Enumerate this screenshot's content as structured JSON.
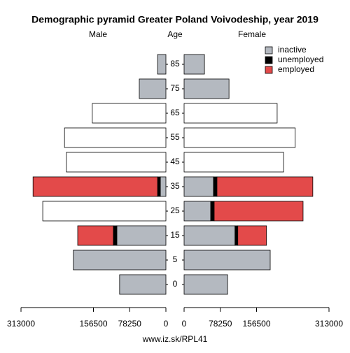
{
  "chart_data": {
    "type": "pyramid",
    "title": "Demographic pyramid Greater Poland Voivodeship, year 2019",
    "left_label": "Male",
    "center_label": "Age",
    "right_label": "Female",
    "source": "www.iz.sk/RPL41",
    "categories": [
      "0",
      "5",
      "15",
      "25",
      "35",
      "45",
      "55",
      "65",
      "75",
      "85"
    ],
    "series": [
      {
        "name": "inactive",
        "color": "#b4b9c0",
        "male": [
          100000,
          200000,
          106000,
          null,
          12000,
          null,
          null,
          null,
          57500,
          18000
        ],
        "female": [
          94000,
          186000,
          110000,
          57500,
          63500,
          null,
          null,
          null,
          97000,
          44000
        ]
      },
      {
        "name": "unemployed",
        "color": "#000000",
        "male": [
          null,
          null,
          7500,
          null,
          6000,
          null,
          null,
          null,
          null,
          null
        ],
        "female": [
          null,
          null,
          6000,
          7500,
          7500,
          null,
          null,
          null,
          null,
          null
        ]
      },
      {
        "name": "employed",
        "color": "#e34a4a",
        "male": [
          null,
          null,
          77000,
          null,
          269000,
          null,
          null,
          null,
          null,
          null
        ],
        "female": [
          null,
          null,
          62000,
          192000,
          207000,
          null,
          null,
          null,
          null,
          null
        ]
      }
    ],
    "totals": {
      "color": "#ffffff",
      "male": [
        null,
        null,
        null,
        266000,
        null,
        215000,
        219000,
        159000,
        null,
        null
      ],
      "female": [
        null,
        null,
        null,
        null,
        null,
        215000,
        240000,
        201000,
        null,
        null
      ]
    },
    "xlim": [
      0,
      313000
    ],
    "xticks": [
      313000,
      156500,
      78250,
      0
    ],
    "legend": "top-right"
  }
}
